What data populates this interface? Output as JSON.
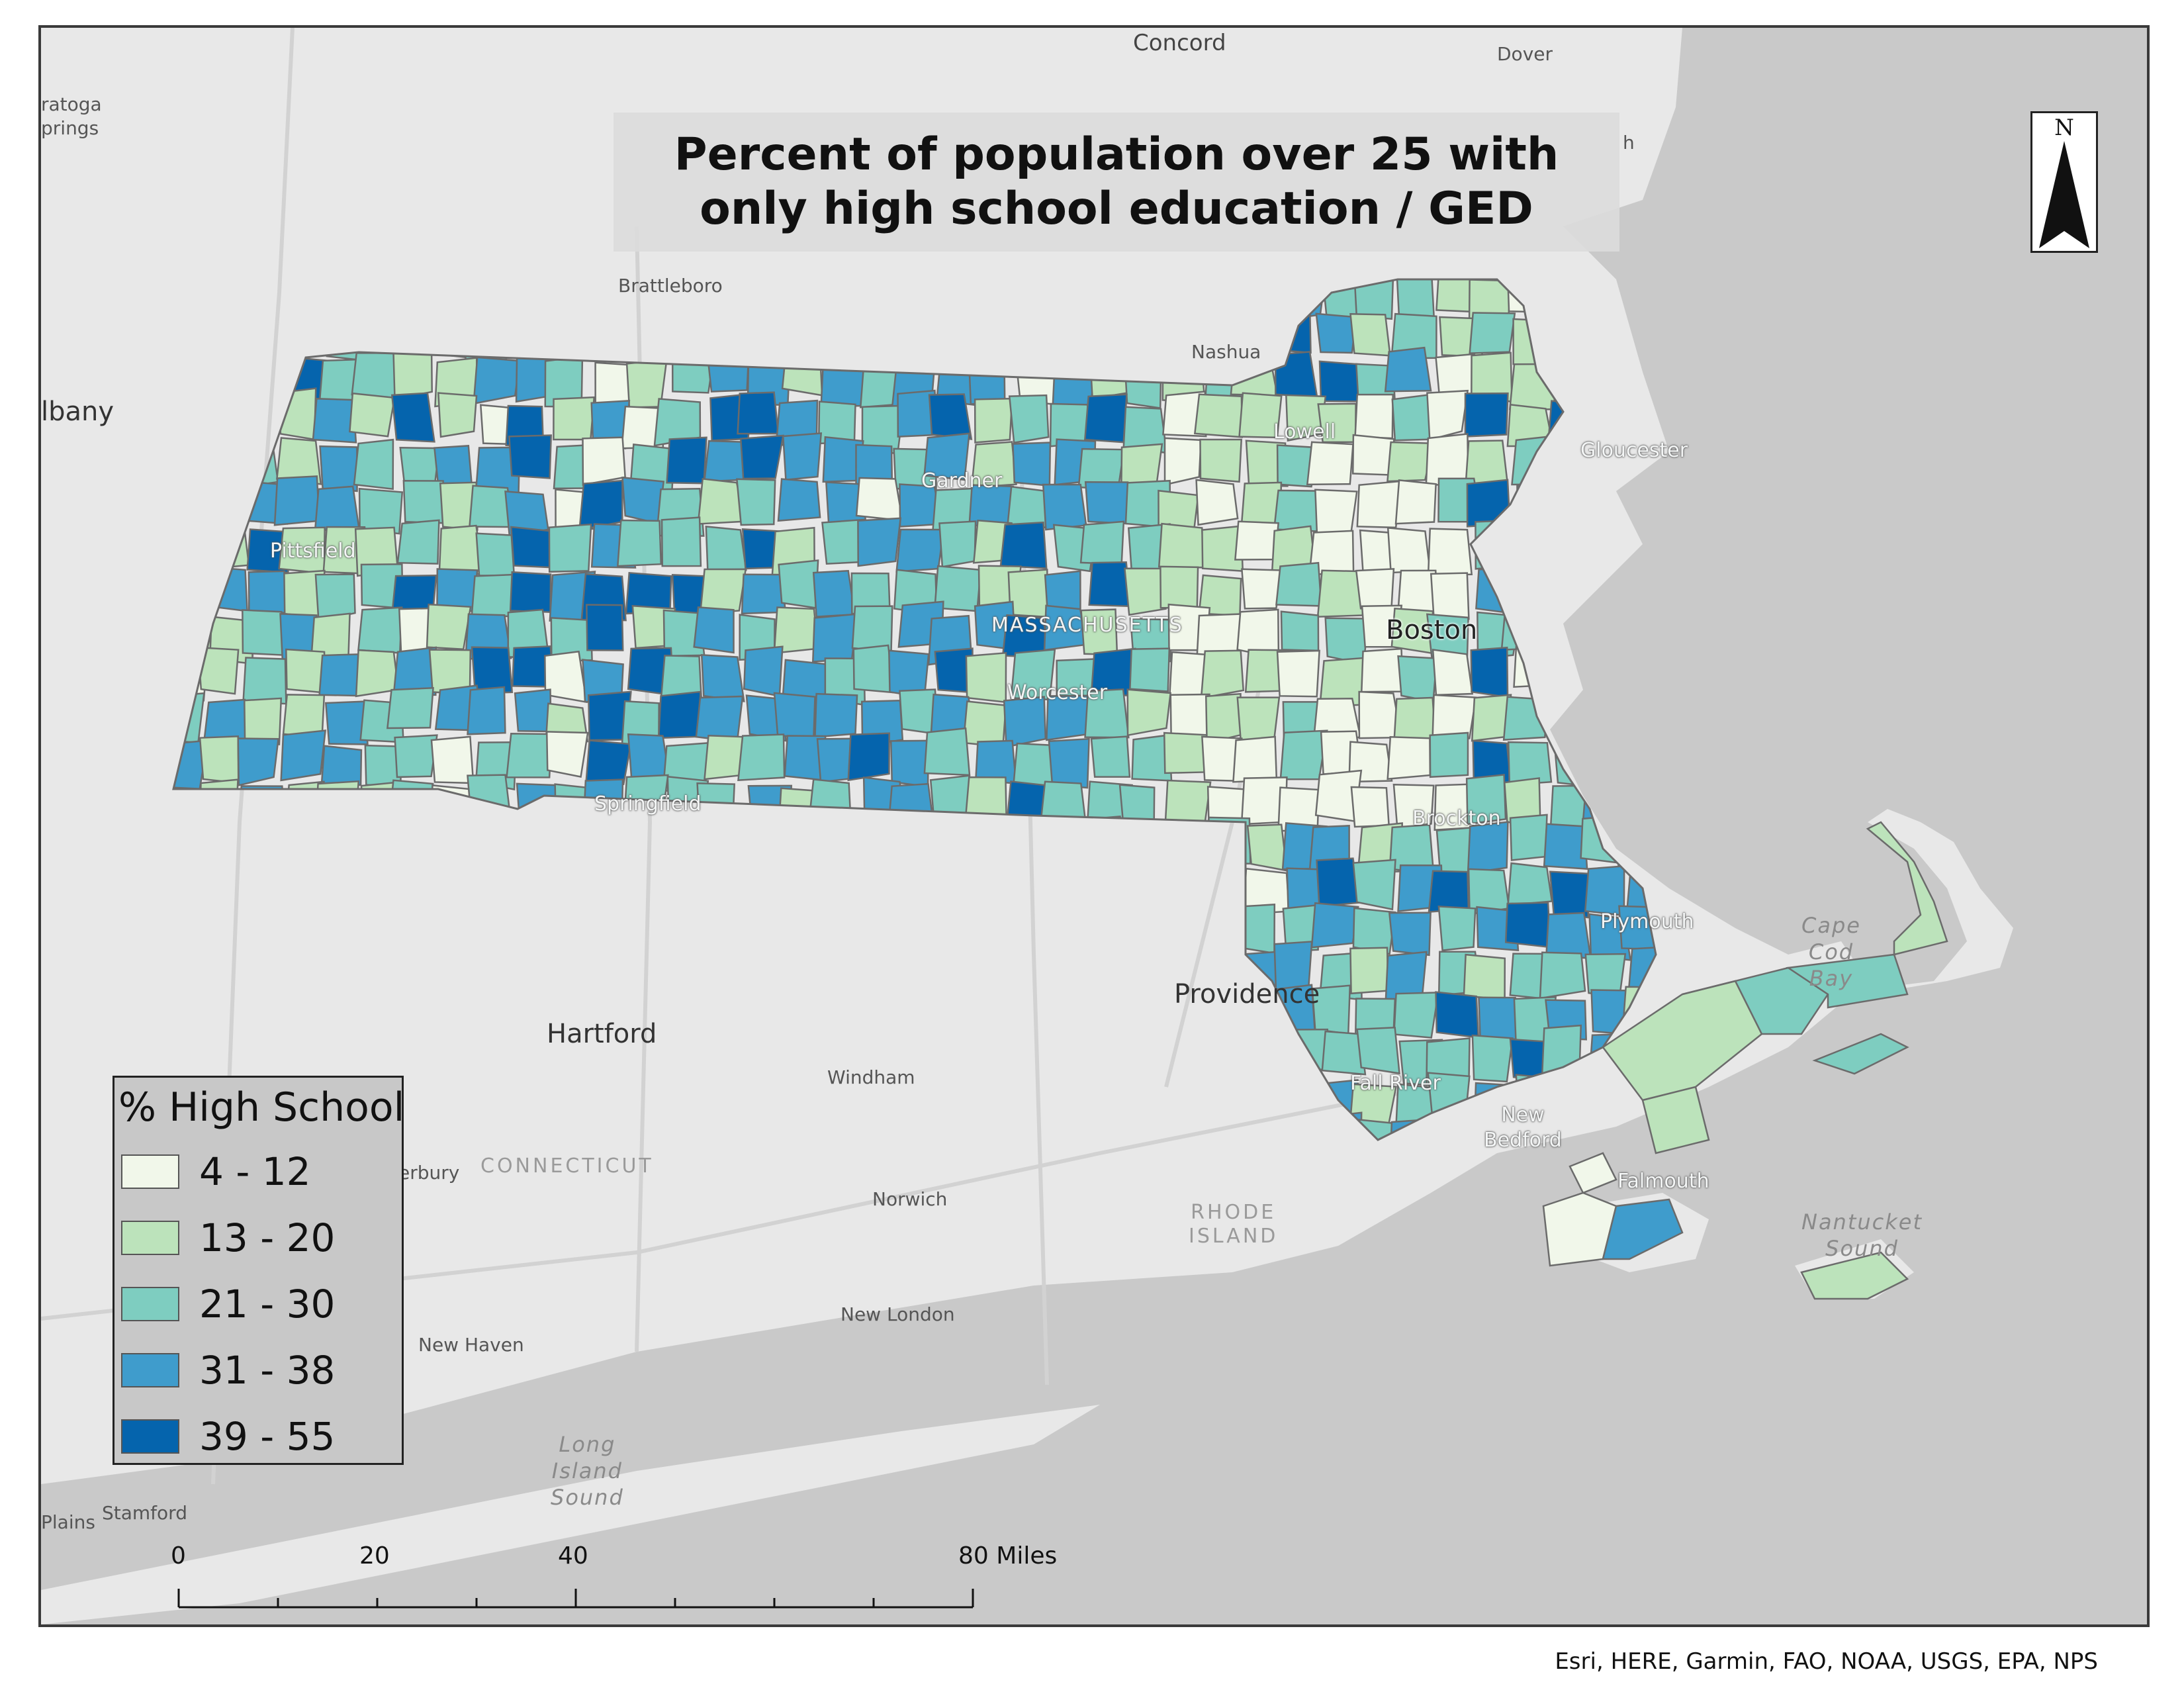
{
  "title": "Percent of population over 25 with only high school education / GED",
  "colors": {
    "ocean": "#c9c9c9",
    "land": "#e8e8e8",
    "border": "#6b6b6b",
    "classes": [
      "#f1f7ea",
      "#bce3bb",
      "#7ecdc0",
      "#3f9ccc",
      "#0564ad"
    ]
  },
  "legend": {
    "title": "% High School",
    "classes": [
      {
        "label": "4 - 12",
        "color": "#f1f7ea"
      },
      {
        "label": "13 - 20",
        "color": "#bce3bb"
      },
      {
        "label": "21 - 30",
        "color": "#7ecdc0"
      },
      {
        "label": "31 - 38",
        "color": "#3f9ccc"
      },
      {
        "label": "39 - 55",
        "color": "#0564ad"
      }
    ]
  },
  "north_arrow": {
    "label": "N"
  },
  "scale_bar": {
    "ticks": [
      "0",
      "20",
      "40",
      "80 Miles"
    ]
  },
  "attribution": "Esri, HERE, Garmin, FAO, NOAA, USGS, EPA, NPS",
  "places": {
    "concord": "Concord",
    "dover": "Dover",
    "saratoga": "ratoga\nprings",
    "albany": "lbany",
    "brattleboro": "Brattleboro",
    "nashua": "Nashua",
    "lowell": "Lowell",
    "gloucester": "Gloucester",
    "gardner": "Gardner",
    "pittsfield": "Pittsfield",
    "massachusetts": "MASSACHUSETTS",
    "boston": "Boston",
    "worcester": "Worcester",
    "springfield": "Springfield",
    "brockton": "Brockton",
    "plymouth": "Plymouth",
    "cape_cod_bay": "Cape\nCod\nBay",
    "providence": "Providence",
    "hartford": "Hartford",
    "windham": "Windham",
    "fall_river": "Fall River",
    "new_bedford": "New\nBedford",
    "connecticut": "CONNECTICUT",
    "waterbury": "erbury",
    "falmouth": "Falmouth",
    "nantucket_sound": "Nantucket\nSound",
    "norwich": "Norwich",
    "rhode_island": "RHODE\nISLAND",
    "new_london": "New London",
    "new_haven": "New Haven",
    "long_island_sound": "Long\nIsland\nSound",
    "stamford": "Stamford",
    "plains": "Plains",
    "h_fragment": "h"
  }
}
